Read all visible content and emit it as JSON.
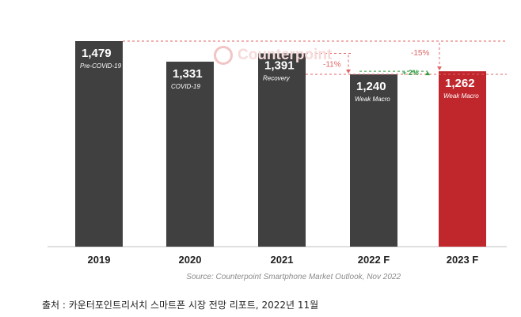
{
  "chart_data": {
    "type": "bar",
    "categories": [
      "2019",
      "2020",
      "2021",
      "2022 F",
      "2023 F"
    ],
    "values": [
      1479,
      1331,
      1391,
      1240,
      1262
    ],
    "value_labels": [
      "1,479",
      "1,331",
      "1,391",
      "1,240",
      "1,262"
    ],
    "bar_sublabels": [
      "Pre-COVID-19",
      "COVID-19",
      "Recovery",
      "Weak Macro",
      "Weak Macro"
    ],
    "bar_colors": [
      "#404040",
      "#404040",
      "#404040",
      "#404040",
      "#c0272d"
    ],
    "ylim": [
      0,
      1550
    ],
    "annotations": [
      {
        "text": "-15%",
        "from_category": "2019",
        "to_category": "2023 F",
        "color": "#e06666"
      },
      {
        "text": "-11%",
        "from_category": "2021",
        "to_category": "2022 F",
        "color": "#e06666"
      },
      {
        "text": "+ 2%",
        "from_category": "2022 F",
        "to_category": "2023 F",
        "color": "#2e9e3e"
      }
    ],
    "source": "Source: Counterpoint Smartphone Market Outlook, Nov 2022"
  },
  "watermark": {
    "text": "Counterpoint",
    "logo": "counterpoint-logo-icon"
  },
  "caption": "출처 : 카운터포인트리서치 스마트폰 시장 전망 리포트, 2022년 11월"
}
